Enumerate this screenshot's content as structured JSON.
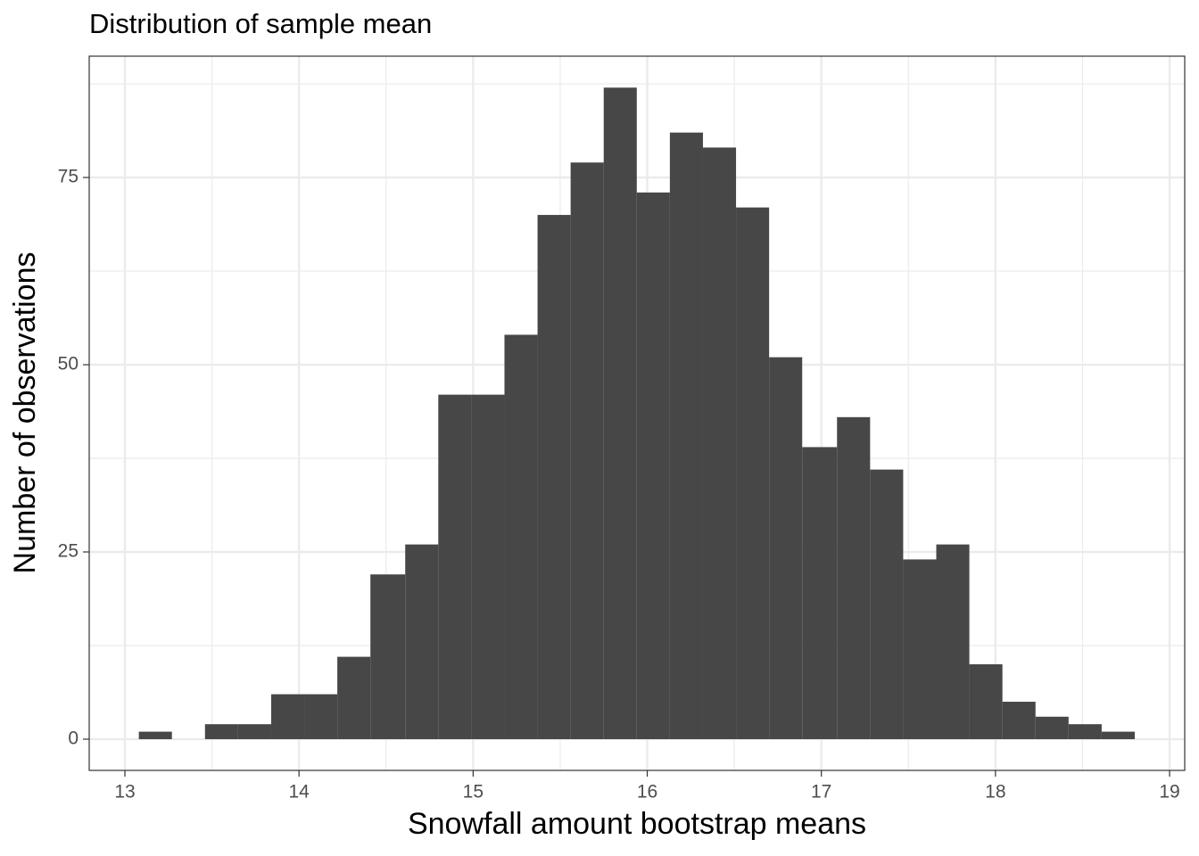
{
  "chart_data": {
    "type": "histogram",
    "title": "Distribution of sample mean",
    "xlabel": "Snowfall amount bootstrap means",
    "ylabel": "Number of observations",
    "bins": [
      13.08,
      13.27,
      13.46,
      13.65,
      13.84,
      14.03,
      14.22,
      14.41,
      14.61,
      14.8,
      14.99,
      15.18,
      15.37,
      15.56,
      15.75,
      15.94,
      16.13,
      16.32,
      16.51,
      16.7,
      16.89,
      17.09,
      17.28,
      17.47,
      17.66,
      17.85,
      18.04,
      18.23,
      18.42,
      18.61,
      18.8
    ],
    "counts": [
      1,
      0,
      2,
      2,
      6,
      6,
      11,
      22,
      26,
      46,
      46,
      54,
      70,
      77,
      87,
      73,
      81,
      79,
      71,
      51,
      39,
      43,
      36,
      24,
      26,
      10,
      5,
      3,
      2,
      1
    ],
    "color": "#474747",
    "xlim": [
      12.795,
      19.087
    ],
    "ylim": [
      -4.17,
      91.2
    ],
    "xticks": [
      13,
      14,
      15,
      16,
      17,
      18,
      19
    ],
    "yticks": [
      0,
      25,
      50,
      75
    ],
    "xminorticks": [
      13.5,
      14.5,
      15.5,
      16.5,
      17.5,
      18.5
    ],
    "yminorticks": [
      12.5,
      37.5,
      62.5,
      87.5
    ],
    "grid": true
  }
}
